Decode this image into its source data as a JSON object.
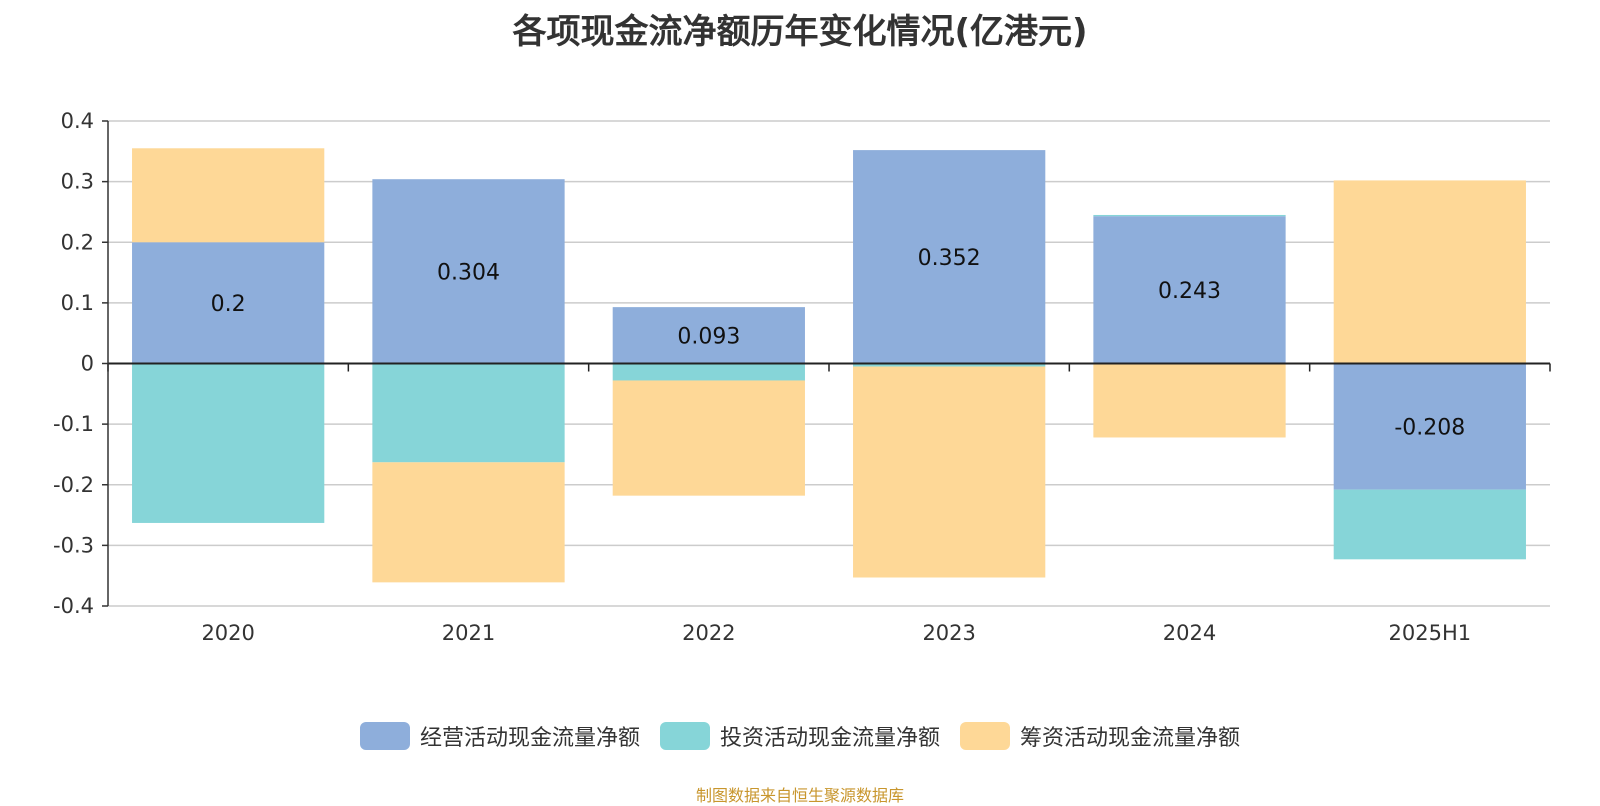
{
  "chart_data": {
    "type": "bar",
    "stacked": true,
    "title": "各项现金流净额历年变化情况(亿港元)",
    "categories": [
      "2020",
      "2021",
      "2022",
      "2023",
      "2024",
      "2025H1"
    ],
    "ylim": [
      -0.4,
      0.4
    ],
    "yticks": [
      0.4,
      0.3,
      0.2,
      0.1,
      0,
      -0.1,
      -0.2,
      -0.3,
      -0.4
    ],
    "ytick_labels": [
      "0.4",
      "0.3",
      "0.2",
      "0.1",
      "0",
      "-0.1",
      "-0.2",
      "-0.3",
      "-0.4"
    ],
    "grid": true,
    "legend_position": "bottom",
    "series": [
      {
        "name": "经营活动现金流量净额",
        "color": "#8eaedb",
        "values": [
          0.2,
          0.304,
          0.093,
          0.352,
          0.243,
          -0.208
        ],
        "labels": [
          "0.2",
          "0.304",
          "0.093",
          "0.352",
          "0.243",
          "-0.208"
        ]
      },
      {
        "name": "投资活动现金流量净额",
        "color": "#86d5d8",
        "values": [
          -0.263,
          -0.163,
          -0.028,
          -0.005,
          0.002,
          -0.115
        ]
      },
      {
        "name": "筹资活动现金流量净额",
        "color": "#fed897",
        "values": [
          0.155,
          -0.198,
          -0.19,
          -0.348,
          -0.122,
          0.302
        ]
      }
    ]
  },
  "source_note": "制图数据来自恒生聚源数据库"
}
